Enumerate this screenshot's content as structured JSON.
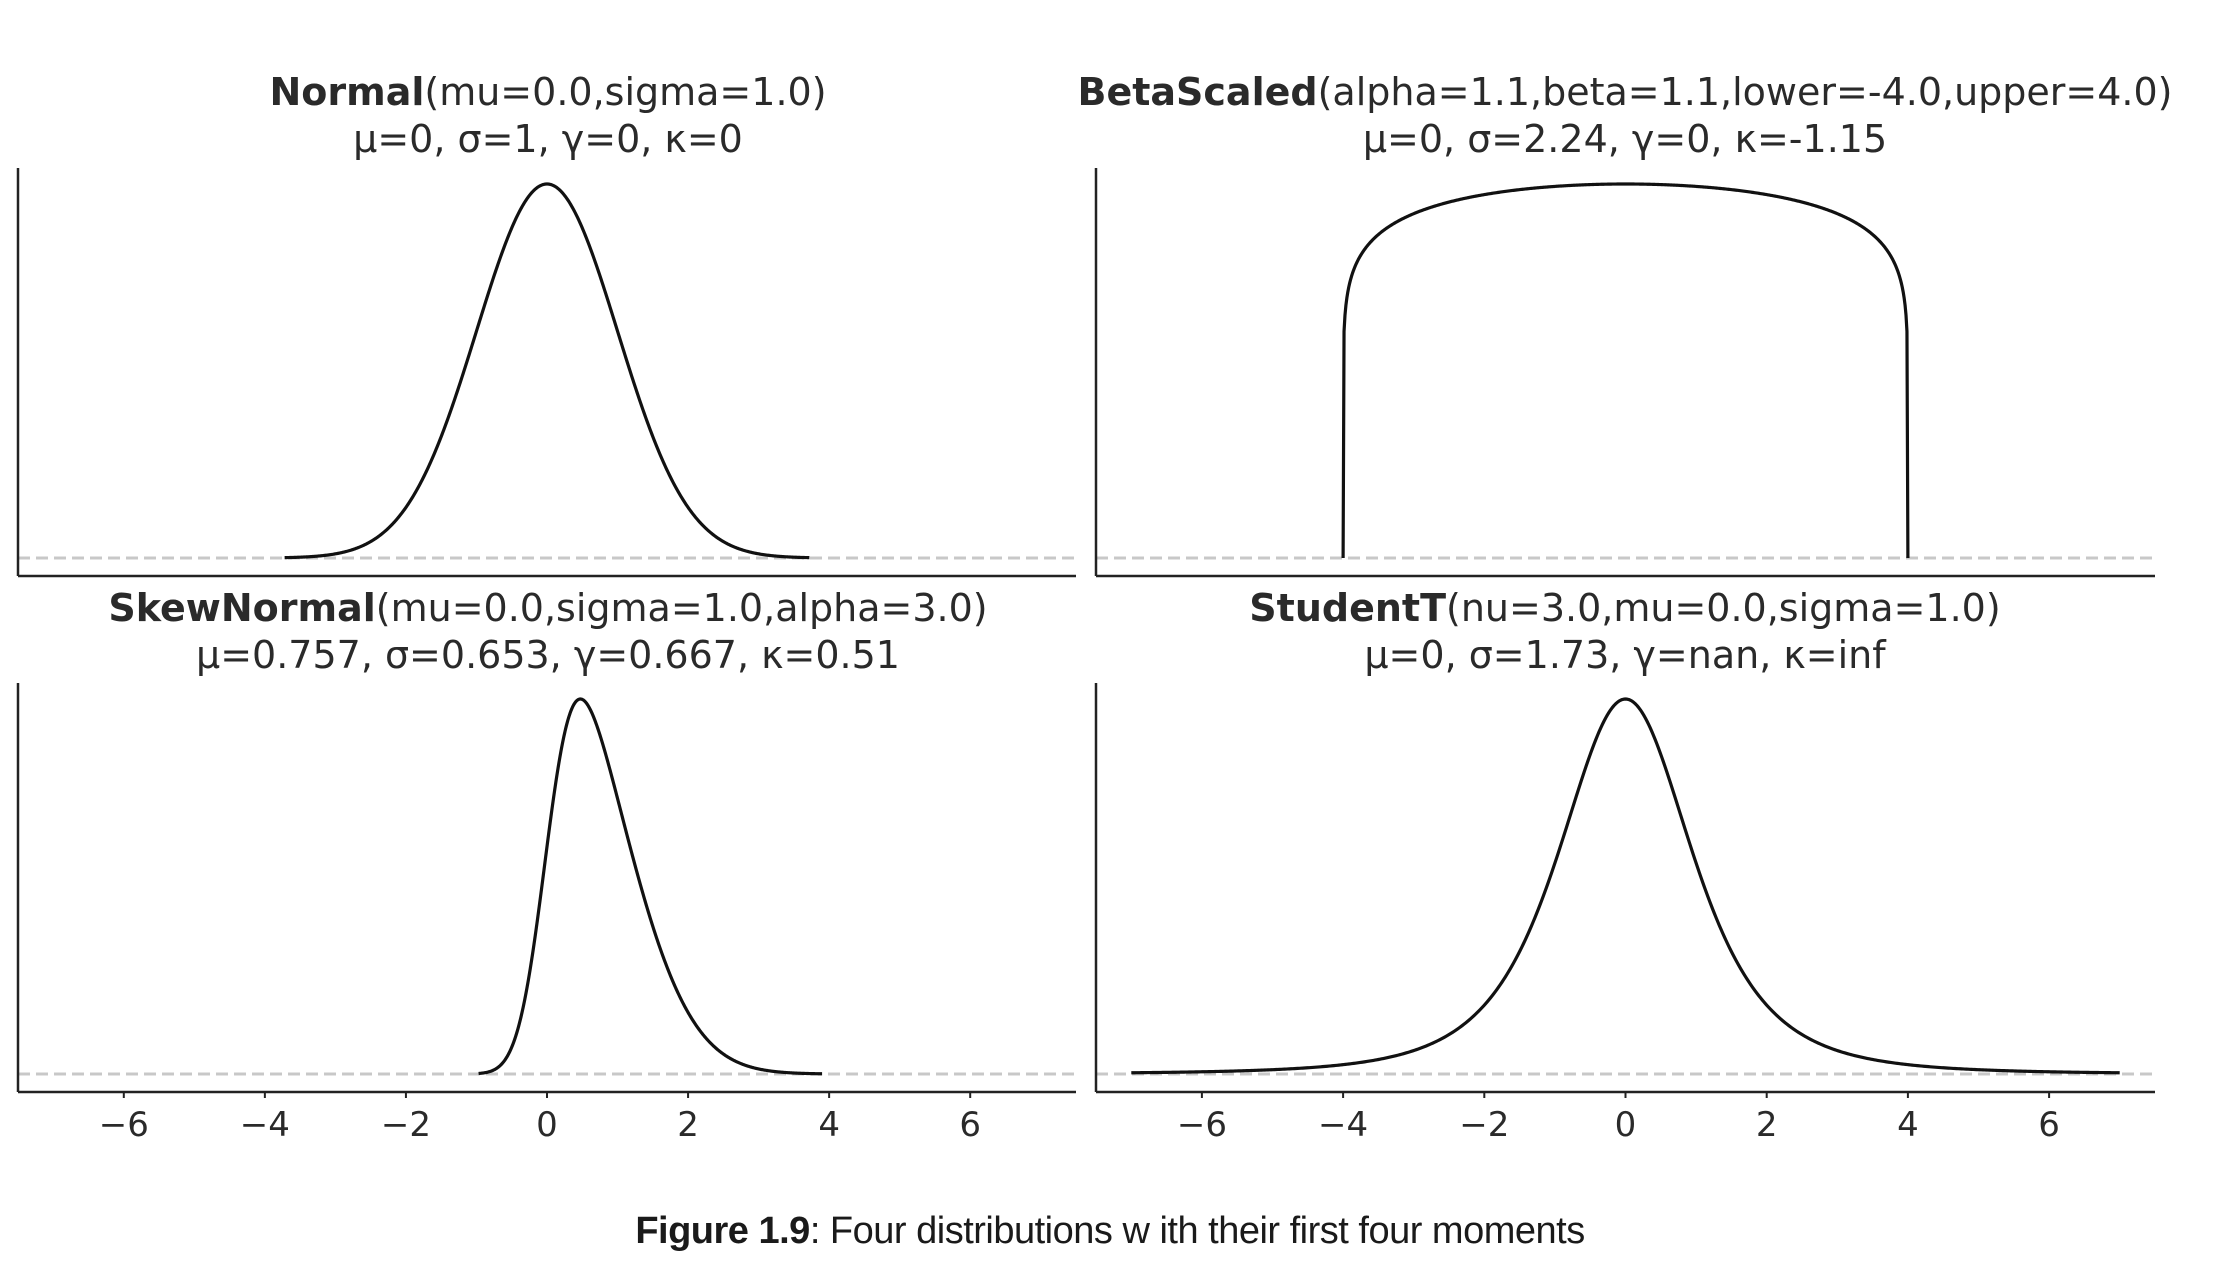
{
  "caption": {
    "label": "Figure 1.9",
    "text": ": Four distributions w ith their first four moments"
  },
  "colors": {
    "curve": "#111111",
    "baseline": "#c8c8c8",
    "axis": "#222222",
    "text": "#2a2a2a"
  },
  "chart_data": [
    {
      "type": "line",
      "title_bold": "Normal",
      "title_params": "(mu=0.0,sigma=1.0)",
      "subtitle": "μ=0, σ=1, γ=0, κ=0",
      "dist": "normal",
      "params": {
        "mu": 0.0,
        "sigma": 1.0
      },
      "x_range": [
        -3.72,
        3.72
      ],
      "xlim": [
        -7.5,
        7.5
      ],
      "xticks": [],
      "xticklabels": [],
      "yticks": [],
      "grid": false,
      "legend": "none",
      "baseline": "dashed at y=0"
    },
    {
      "type": "line",
      "title_bold": "BetaScaled",
      "title_params": "(alpha=1.1,beta=1.1,lower=-4.0,upper=4.0)",
      "subtitle": "μ=0, σ=2.24, γ=0, κ=-1.15",
      "dist": "betascaled",
      "params": {
        "alpha": 1.1,
        "beta": 1.1,
        "lower": -4.0,
        "upper": 4.0
      },
      "x_range": [
        -4.0,
        4.0
      ],
      "xlim": [
        -7.5,
        7.5
      ],
      "xticks": [],
      "xticklabels": [],
      "yticks": [],
      "grid": false,
      "legend": "none",
      "baseline": "dashed at y=0"
    },
    {
      "type": "line",
      "title_bold": "SkewNormal",
      "title_params": "(mu=0.0,sigma=1.0,alpha=3.0)",
      "subtitle": "μ=0.757, σ=0.653, γ=0.667, κ=0.51",
      "dist": "skewnormal",
      "params": {
        "mu": 0.0,
        "sigma": 1.0,
        "alpha": 3.0
      },
      "x_range": [
        -0.97,
        3.9
      ],
      "xlim": [
        -7.5,
        7.5
      ],
      "xticks": [
        -6,
        -4,
        -2,
        0,
        2,
        4,
        6
      ],
      "xticklabels": [
        "−6",
        "−4",
        "−2",
        "0",
        "2",
        "4",
        "6"
      ],
      "yticks": [],
      "grid": false,
      "legend": "none",
      "baseline": "dashed at y=0"
    },
    {
      "type": "line",
      "title_bold": "StudentT",
      "title_params": "(nu=3.0,mu=0.0,sigma=1.0)",
      "subtitle": "μ=0, σ=1.73, γ=nan, κ=inf",
      "dist": "studentt",
      "params": {
        "nu": 3.0,
        "mu": 0.0,
        "sigma": 1.0
      },
      "x_range": [
        -7.0,
        7.0
      ],
      "xlim": [
        -7.5,
        7.5
      ],
      "xticks": [
        -6,
        -4,
        -2,
        0,
        2,
        4,
        6
      ],
      "xticklabels": [
        "−6",
        "−4",
        "−2",
        "0",
        "2",
        "4",
        "6"
      ],
      "yticks": [],
      "grid": false,
      "legend": "none",
      "baseline": "dashed at y=0"
    }
  ]
}
